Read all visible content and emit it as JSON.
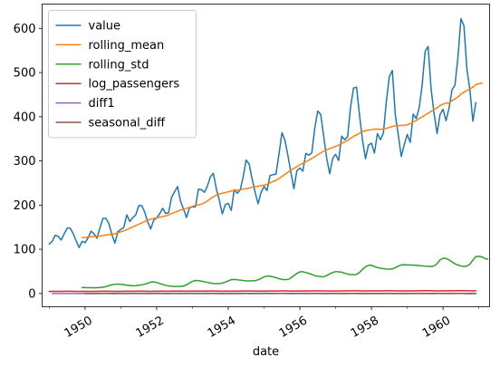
{
  "chart_data": {
    "type": "line",
    "xlabel": "date",
    "ylabel": "",
    "xlim": [
      1948.8,
      1961.3
    ],
    "ylim": [
      -30,
      655
    ],
    "x_ticks": [
      1950,
      1952,
      1954,
      1956,
      1958,
      1960
    ],
    "x_tick_labels": [
      "1950",
      "1952",
      "1954",
      "1956",
      "1958",
      "1960"
    ],
    "y_ticks": [
      0,
      100,
      200,
      300,
      400,
      500,
      600
    ],
    "y_tick_labels": [
      "0",
      "100",
      "200",
      "300",
      "400",
      "500",
      "600"
    ],
    "grid": false,
    "legend": "top-left",
    "x_start": 1949.0,
    "x_step": 0.083333,
    "series": [
      {
        "name": "value",
        "color": "#1f77b4",
        "values": [
          112,
          118,
          132,
          129,
          121,
          135,
          148,
          148,
          136,
          119,
          104,
          118,
          115,
          126,
          141,
          135,
          125,
          149,
          170,
          170,
          158,
          133,
          114,
          140,
          145,
          150,
          178,
          163,
          172,
          178,
          199,
          199,
          184,
          162,
          146,
          166,
          171,
          180,
          193,
          181,
          183,
          218,
          230,
          242,
          209,
          191,
          172,
          194,
          196,
          196,
          236,
          235,
          229,
          243,
          264,
          272,
          237,
          211,
          180,
          201,
          204,
          188,
          235,
          227,
          234,
          264,
          302,
          293,
          259,
          229,
          203,
          229,
          242,
          233,
          267,
          269,
          270,
          315,
          364,
          347,
          312,
          274,
          237,
          278,
          284,
          277,
          317,
          313,
          318,
          374,
          413,
          405,
          355,
          306,
          271,
          306,
          315,
          301,
          356,
          348,
          355,
          422,
          465,
          467,
          404,
          347,
          305,
          336,
          340,
          318,
          362,
          348,
          363,
          435,
          491,
          505,
          404,
          359,
          310,
          337,
          360,
          342,
          406,
          396,
          420,
          472,
          548,
          559,
          463,
          407,
          362,
          405,
          417,
          391,
          419,
          461,
          472,
          535,
          622,
          606,
          508,
          461,
          390,
          432
        ]
      },
      {
        "name": "rolling_mean",
        "color": "#ff7f0e",
        "offset": 11,
        "values": [
          126.7,
          126.9,
          127.6,
          128.3,
          128.8,
          129.2,
          130.0,
          131.2,
          132.2,
          133.0,
          134.0,
          135.4,
          137.4,
          139.6,
          141.8,
          144.3,
          147.8,
          150.5,
          153.6,
          156.8,
          159.8,
          162.8,
          166.1,
          168.3,
          169.7,
          171.2,
          172.5,
          174.0,
          175.3,
          177.8,
          181.0,
          183.6,
          186.1,
          188.7,
          190.8,
          192.7,
          194.8,
          197.2,
          199.5,
          200.8,
          202.4,
          205.0,
          209.3,
          214.4,
          218.8,
          222.5,
          224.9,
          226.9,
          228.4,
          229.9,
          232.0,
          233.3,
          234.0,
          234.6,
          236.4,
          237.1,
          238.6,
          240.3,
          241.9,
          242.7,
          244.2,
          245.0,
          246.9,
          250.0,
          253.3,
          256.1,
          260.3,
          264.8,
          269.4,
          274.4,
          278.9,
          283.0,
          287.0,
          291.4,
          294.7,
          298.1,
          301.8,
          305.4,
          309.6,
          314.0,
          318.1,
          321.8,
          325.4,
          328.3,
          330.2,
          333.0,
          335.7,
          339.7,
          342.8,
          346.7,
          351.3,
          355.4,
          358.8,
          362.8,
          366.1,
          368.9,
          369.4,
          370.8,
          372.0,
          371.6,
          371.7,
          372.3,
          373.8,
          375.7,
          377.8,
          379.4,
          380.0,
          380.5,
          380.5,
          382.0,
          384.0,
          387.7,
          391.5,
          396.0,
          399.7,
          403.8,
          408.2,
          412.1,
          416.3,
          420.0,
          425.4,
          428.3,
          431.3,
          430.8,
          436.5,
          440.4,
          444.8,
          451.1,
          455.4,
          459.4,
          463.3,
          467.0,
          472.8,
          474.5,
          476.2
        ]
      },
      {
        "name": "rolling_std",
        "color": "#2ca02c",
        "offset": 11,
        "values": [
          13.7,
          13.4,
          13.2,
          13.1,
          12.9,
          13.2,
          13.5,
          14.4,
          15.4,
          18.0,
          19.7,
          20.9,
          21.1,
          20.7,
          20.0,
          18.6,
          18.0,
          17.5,
          17.7,
          18.7,
          19.6,
          21.1,
          23.1,
          25.8,
          26.1,
          25.0,
          22.5,
          20.4,
          18.6,
          17.0,
          16.4,
          15.9,
          15.9,
          15.8,
          16.9,
          19.6,
          23.6,
          27.5,
          29.3,
          29.2,
          27.9,
          26.4,
          25.0,
          23.8,
          22.5,
          22.3,
          22.2,
          23.6,
          25.8,
          28.5,
          31.2,
          31.7,
          31.1,
          30.2,
          29.6,
          28.7,
          28.4,
          28.6,
          28.9,
          30.9,
          34.1,
          37.6,
          39.5,
          39.2,
          37.6,
          35.8,
          33.6,
          31.9,
          31.2,
          31.7,
          35.1,
          40.3,
          45.6,
          48.9,
          49.3,
          47.3,
          45.6,
          43.1,
          40.4,
          38.9,
          38.1,
          37.8,
          40.6,
          44.4,
          47.5,
          49.6,
          49.0,
          48.1,
          46.0,
          43.9,
          42.8,
          42.5,
          43.1,
          47.6,
          54.6,
          60.3,
          63.8,
          64.0,
          61.0,
          58.7,
          57.5,
          56.2,
          55.4,
          55.2,
          55.6,
          58.5,
          61.9,
          64.6,
          65.1,
          64.5,
          64.7,
          64.2,
          63.7,
          63.1,
          62.5,
          61.7,
          61.4,
          61.2,
          62.4,
          67.5,
          75.9,
          79.7,
          79.5,
          75.9,
          71.8,
          67.1,
          64.3,
          62.4,
          61.3,
          62.0,
          66.2,
          75.7,
          83.3,
          84.1,
          83.0,
          79.2,
          77.7
        ]
      },
      {
        "name": "log_passengers",
        "color": "#d62728",
        "values": [
          4.72,
          4.77,
          4.88,
          4.86,
          4.8,
          4.91,
          5.0,
          5.0,
          4.91,
          4.78,
          4.64,
          4.77,
          4.74,
          4.84,
          4.95,
          4.91,
          4.83,
          5.0,
          5.14,
          5.14,
          5.06,
          4.89,
          4.74,
          4.94,
          4.98,
          5.01,
          5.18,
          5.09,
          5.15,
          5.18,
          5.29,
          5.29,
          5.21,
          5.09,
          4.98,
          5.11,
          5.14,
          5.19,
          5.26,
          5.2,
          5.21,
          5.38,
          5.44,
          5.49,
          5.34,
          5.25,
          5.15,
          5.27,
          5.28,
          5.28,
          5.46,
          5.46,
          5.43,
          5.49,
          5.58,
          5.61,
          5.47,
          5.35,
          5.19,
          5.3,
          5.32,
          5.24,
          5.46,
          5.42,
          5.46,
          5.58,
          5.71,
          5.68,
          5.56,
          5.43,
          5.31,
          5.43,
          5.49,
          5.45,
          5.59,
          5.59,
          5.6,
          5.75,
          5.9,
          5.85,
          5.74,
          5.61,
          5.47,
          5.63,
          5.65,
          5.62,
          5.76,
          5.75,
          5.76,
          5.92,
          6.02,
          6.0,
          5.87,
          5.72,
          5.6,
          5.72,
          5.75,
          5.71,
          5.87,
          5.85,
          5.87,
          6.05,
          6.14,
          6.15,
          6.0,
          5.85,
          5.72,
          5.82,
          5.83,
          5.76,
          5.89,
          5.85,
          5.89,
          6.08,
          6.2,
          6.22,
          6.0,
          5.88,
          5.74,
          5.82,
          5.89,
          5.83,
          6.01,
          5.98,
          6.04,
          6.16,
          6.31,
          6.33,
          6.14,
          6.01,
          5.89,
          6.0,
          6.03,
          5.97,
          6.04,
          6.13,
          6.16,
          6.28,
          6.43,
          6.41,
          6.23,
          6.13,
          5.97,
          6.07
        ]
      },
      {
        "name": "diff1",
        "color": "#9467bd",
        "offset": 1,
        "values": [
          0.05,
          0.11,
          -0.02,
          -0.06,
          0.11,
          0.09,
          0.0,
          -0.08,
          -0.13,
          -0.13,
          0.13,
          -0.03,
          0.09,
          0.11,
          -0.04,
          -0.08,
          0.18,
          0.13,
          0.0,
          -0.07,
          -0.17,
          -0.15,
          0.21,
          0.03,
          0.03,
          0.17,
          -0.09,
          0.05,
          0.03,
          0.11,
          0.0,
          -0.08,
          -0.13,
          -0.1,
          0.13,
          0.03,
          0.05,
          0.07,
          -0.06,
          0.01,
          0.17,
          0.05,
          0.05,
          -0.15,
          -0.09,
          -0.1,
          0.12,
          0.01,
          0.0,
          0.18,
          0.0,
          -0.03,
          0.06,
          0.08,
          0.03,
          -0.14,
          -0.12,
          -0.16,
          0.11,
          0.01,
          -0.08,
          0.22,
          -0.03,
          0.03,
          0.12,
          0.13,
          -0.03,
          -0.12,
          -0.12,
          -0.12,
          0.12,
          0.06,
          -0.04,
          0.14,
          0.01,
          0.0,
          0.15,
          0.14,
          -0.05,
          -0.11,
          -0.13,
          -0.15,
          0.16,
          0.02,
          -0.02,
          0.13,
          -0.01,
          0.02,
          0.16,
          0.1,
          -0.02,
          -0.13,
          -0.15,
          -0.12,
          0.12,
          0.03,
          -0.05,
          0.17,
          -0.02,
          0.02,
          0.17,
          0.1,
          0.0,
          -0.14,
          -0.15,
          -0.13,
          0.1,
          0.01,
          -0.07,
          0.13,
          -0.04,
          0.04,
          0.18,
          0.12,
          0.03,
          -0.22,
          -0.12,
          -0.15,
          0.08,
          0.07,
          -0.05,
          0.17,
          -0.03,
          0.06,
          0.12,
          0.15,
          0.02,
          -0.19,
          -0.13,
          -0.12,
          0.11,
          0.03,
          -0.06,
          0.07,
          0.1,
          0.02,
          0.13,
          0.15,
          -0.03,
          -0.18,
          -0.1,
          -0.17,
          0.1
        ]
      },
      {
        "name": "seasonal_diff",
        "color": "#8c564b",
        "offset": 12,
        "values": [
          0.03,
          0.07,
          0.07,
          0.05,
          0.03,
          0.1,
          0.14,
          0.14,
          0.15,
          0.11,
          0.09,
          0.17,
          0.23,
          0.17,
          0.23,
          0.19,
          0.32,
          0.18,
          0.16,
          0.16,
          0.15,
          0.2,
          0.25,
          0.17,
          0.16,
          0.18,
          0.08,
          0.11,
          0.06,
          0.2,
          0.14,
          0.2,
          0.13,
          0.16,
          0.16,
          0.16,
          0.14,
          0.09,
          0.2,
          0.26,
          0.22,
          0.11,
          0.14,
          0.12,
          0.13,
          0.1,
          0.04,
          0.03,
          0.04,
          -0.04,
          0.0,
          -0.03,
          0.02,
          0.08,
          0.13,
          0.07,
          0.09,
          0.08,
          0.12,
          0.13,
          0.17,
          0.21,
          0.13,
          0.17,
          0.14,
          0.18,
          0.19,
          0.17,
          0.19,
          0.18,
          0.15,
          0.19,
          0.16,
          0.17,
          0.17,
          0.15,
          0.16,
          0.17,
          0.13,
          0.15,
          0.13,
          0.11,
          0.13,
          0.1,
          0.1,
          0.08,
          0.12,
          0.11,
          0.11,
          0.12,
          0.12,
          0.14,
          0.13,
          0.13,
          0.12,
          0.09,
          0.08,
          0.05,
          0.02,
          0.0,
          0.02,
          0.03,
          0.05,
          0.08,
          0.0,
          0.03,
          0.02,
          0.0,
          0.06,
          0.07,
          0.11,
          0.13,
          0.14,
          0.08,
          0.11,
          0.1,
          0.14,
          0.13,
          0.16,
          0.18,
          0.15,
          0.13,
          0.03,
          0.15,
          0.12,
          0.13,
          0.13,
          0.08,
          0.09,
          0.12,
          0.07,
          0.06
        ]
      }
    ]
  }
}
